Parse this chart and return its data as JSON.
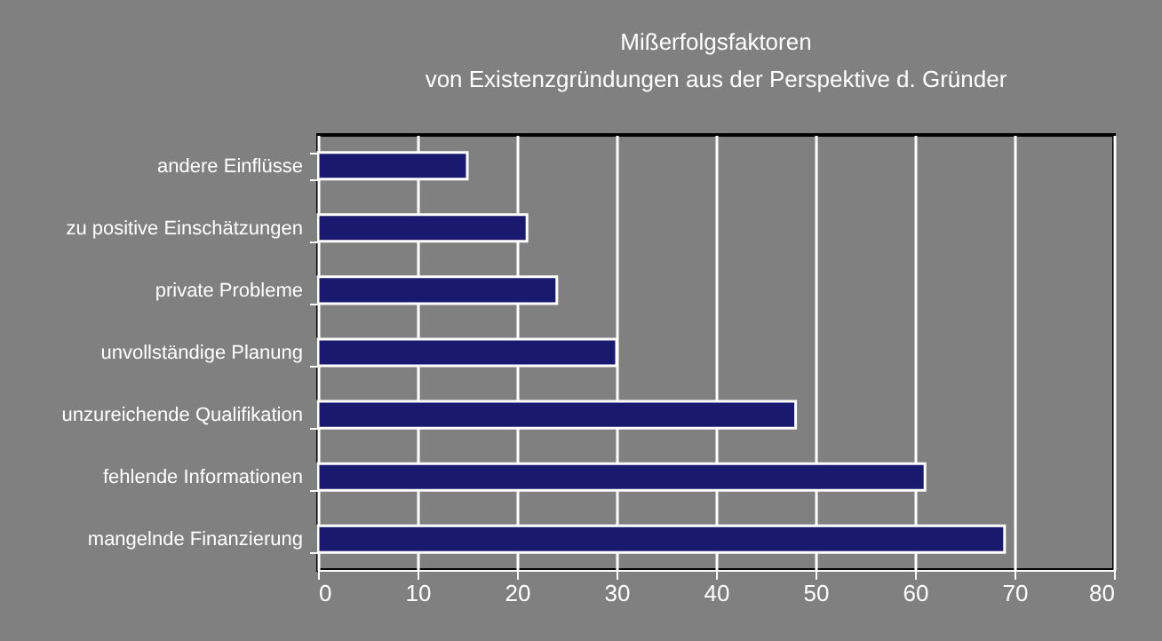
{
  "chart_data": {
    "type": "bar",
    "orientation": "horizontal",
    "title": [
      "Mißerfolgsfaktoren",
      "von Existenzgründungen aus der Perspektive d. Gründer"
    ],
    "categories": [
      "andere Einflüsse",
      "zu positive Einschätzungen",
      "private Probleme",
      "unvollständige Planung",
      "unzureichende Qualifikation",
      "fehlende Informationen",
      "mangelnde Finanzierung"
    ],
    "values": [
      15,
      21,
      24,
      30,
      48,
      61,
      69
    ],
    "color": "#191970",
    "xlim": [
      0,
      80
    ],
    "xticks": [
      0,
      10,
      20,
      30,
      40,
      50,
      60,
      70,
      80
    ],
    "grid": "x"
  }
}
